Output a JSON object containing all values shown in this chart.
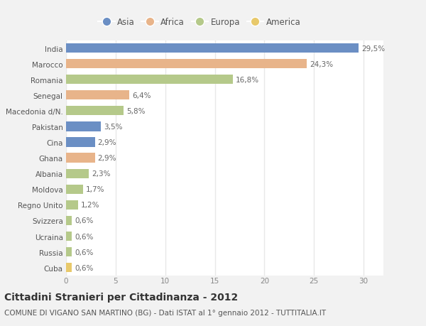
{
  "countries": [
    "India",
    "Marocco",
    "Romania",
    "Senegal",
    "Macedonia d/N.",
    "Pakistan",
    "Cina",
    "Ghana",
    "Albania",
    "Moldova",
    "Regno Unito",
    "Svizzera",
    "Ucraina",
    "Russia",
    "Cuba"
  ],
  "values": [
    29.5,
    24.3,
    16.8,
    6.4,
    5.8,
    3.5,
    2.9,
    2.9,
    2.3,
    1.7,
    1.2,
    0.6,
    0.6,
    0.6,
    0.6
  ],
  "labels": [
    "29,5%",
    "24,3%",
    "16,8%",
    "6,4%",
    "5,8%",
    "3,5%",
    "2,9%",
    "2,9%",
    "2,3%",
    "1,7%",
    "1,2%",
    "0,6%",
    "0,6%",
    "0,6%",
    "0,6%"
  ],
  "colors": [
    "#6b8fc4",
    "#e8b48a",
    "#b5c98a",
    "#e8b48a",
    "#b5c98a",
    "#6b8fc4",
    "#6b8fc4",
    "#e8b48a",
    "#b5c98a",
    "#b5c98a",
    "#b5c98a",
    "#b5c98a",
    "#b5c98a",
    "#b5c98a",
    "#e8c96b"
  ],
  "legend_labels": [
    "Asia",
    "Africa",
    "Europa",
    "America"
  ],
  "legend_colors": [
    "#6b8fc4",
    "#e8b48a",
    "#b5c98a",
    "#e8c96b"
  ],
  "title": "Cittadini Stranieri per Cittadinanza - 2012",
  "subtitle": "COMUNE DI VIGANO SAN MARTINO (BG) - Dati ISTAT al 1° gennaio 2012 - TUTTITALIA.IT",
  "xlim": [
    0,
    32
  ],
  "xticks": [
    0,
    5,
    10,
    15,
    20,
    25,
    30
  ],
  "background_color": "#f2f2f2",
  "plot_bg_color": "#ffffff",
  "grid_color": "#e8e8e8",
  "bar_height": 0.6,
  "label_fontsize": 7.5,
  "tick_fontsize": 7.5,
  "ytick_fontsize": 7.5,
  "title_fontsize": 10,
  "subtitle_fontsize": 7.5,
  "legend_fontsize": 8.5
}
